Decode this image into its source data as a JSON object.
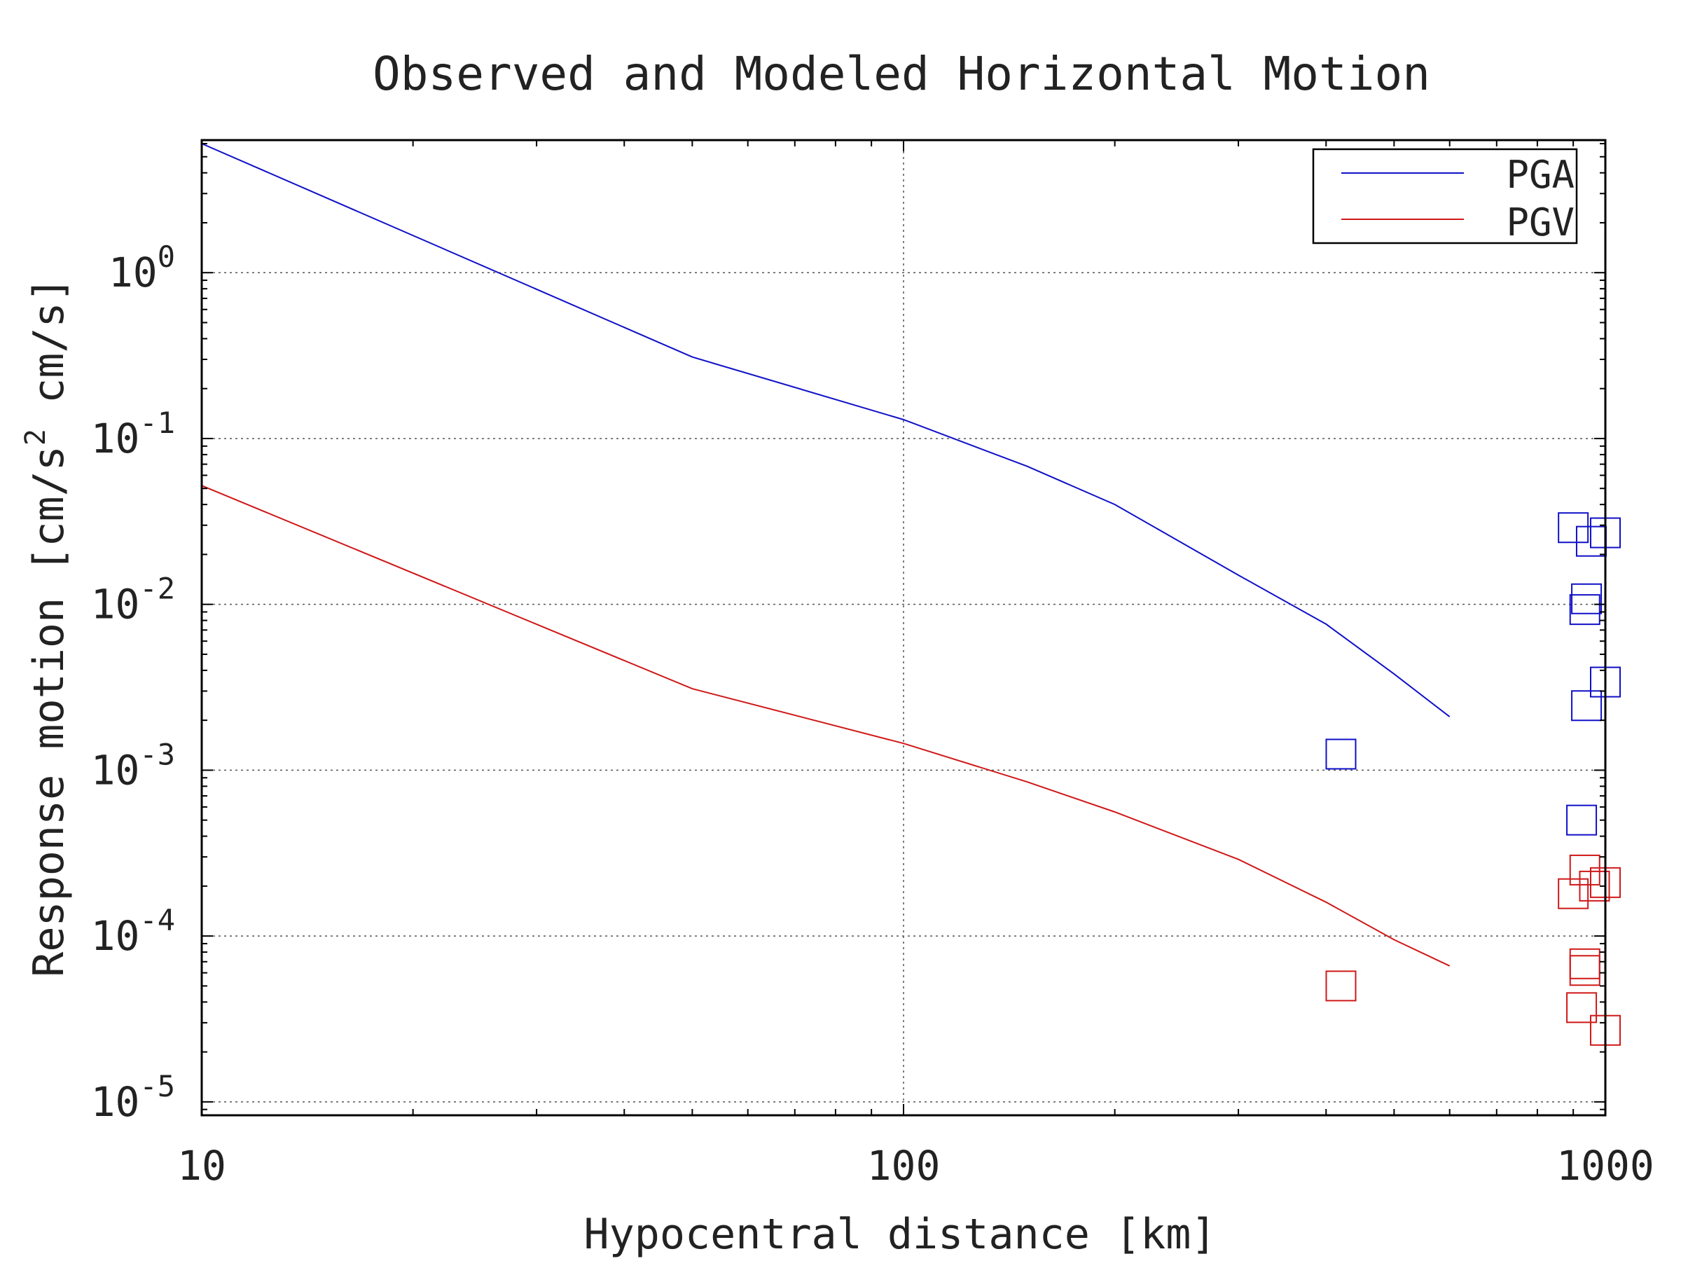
{
  "chart_data": {
    "type": "line",
    "title": "Observed and Modeled Horizontal Motion",
    "xlabel": "Hypocentral distance [km]",
    "ylabel_parts": [
      "Response motion  [cm/s",
      "2",
      "  cm/s]"
    ],
    "x_scale": "log",
    "y_scale": "log",
    "xlim": [
      10,
      1000
    ],
    "ylim": [
      8.3e-06,
      6.3
    ],
    "x_ticks": [
      {
        "value": 10,
        "label": "10"
      },
      {
        "value": 100,
        "label": "100"
      },
      {
        "value": 1000,
        "label": "1000"
      }
    ],
    "y_ticks": [
      {
        "value": 1,
        "base": "10",
        "exp": "0"
      },
      {
        "value": 0.1,
        "base": "10",
        "exp": "-1"
      },
      {
        "value": 0.01,
        "base": "10",
        "exp": "-2"
      },
      {
        "value": 0.001,
        "base": "10",
        "exp": "-3"
      },
      {
        "value": 0.0001,
        "base": "10",
        "exp": "-4"
      },
      {
        "value": 1e-05,
        "base": "10",
        "exp": "-5"
      }
    ],
    "grid": true,
    "legend_position": "top-right",
    "series": [
      {
        "name": "PGA",
        "color": "#1010c8",
        "model_x": [
          10,
          50,
          100,
          150,
          200,
          300,
          400,
          500,
          600
        ],
        "model_y": [
          6.0,
          0.31,
          0.13,
          0.068,
          0.04,
          0.015,
          0.0076,
          0.0038,
          0.0021
        ],
        "observed": [
          {
            "x": 420,
            "y": 0.00125
          },
          {
            "x": 900,
            "y": 0.029
          },
          {
            "x": 955,
            "y": 0.024
          },
          {
            "x": 1000,
            "y": 0.027
          },
          {
            "x": 940,
            "y": 0.0108
          },
          {
            "x": 935,
            "y": 0.0093
          },
          {
            "x": 1000,
            "y": 0.0034
          },
          {
            "x": 940,
            "y": 0.00245
          },
          {
            "x": 925,
            "y": 0.0005
          }
        ]
      },
      {
        "name": "PGV",
        "color": "#d01818",
        "model_x": [
          10,
          50,
          100,
          150,
          200,
          300,
          400,
          500,
          600
        ],
        "model_y": [
          0.052,
          0.0031,
          0.00145,
          0.00085,
          0.00056,
          0.00029,
          0.00016,
          9.5e-05,
          6.6e-05
        ],
        "observed": [
          {
            "x": 420,
            "y": 5e-05
          },
          {
            "x": 900,
            "y": 0.00018
          },
          {
            "x": 935,
            "y": 0.00025
          },
          {
            "x": 965,
            "y": 0.0002
          },
          {
            "x": 1000,
            "y": 0.00021
          },
          {
            "x": 935,
            "y": 6.8e-05
          },
          {
            "x": 935,
            "y": 6.2e-05
          },
          {
            "x": 925,
            "y": 3.7e-05
          },
          {
            "x": 1000,
            "y": 2.7e-05
          }
        ]
      }
    ]
  }
}
